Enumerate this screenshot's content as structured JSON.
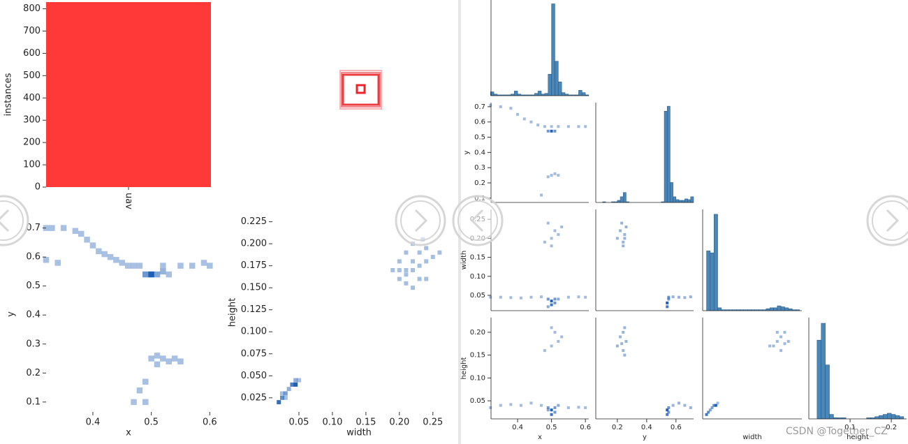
{
  "chart_data": [
    {
      "type": "bar",
      "categories": [
        "uav"
      ],
      "values": [
        830
      ],
      "ylabel": "instances",
      "color": "#ff3838",
      "ylim": [
        0,
        830
      ],
      "yticks": [
        0,
        100,
        200,
        300,
        400,
        500,
        600,
        700,
        800
      ]
    },
    {
      "type": "heatmap",
      "xlabel": "x",
      "ylabel": "y",
      "color": "#1f5fb4",
      "x": [
        0.32,
        0.33,
        0.35,
        0.37,
        0.38,
        0.39,
        0.4,
        0.41,
        0.42,
        0.43,
        0.44,
        0.45,
        0.46,
        0.47,
        0.48,
        0.52,
        0.55,
        0.57,
        0.59,
        0.6,
        0.32,
        0.34,
        0.49,
        0.5,
        0.51,
        0.52,
        0.53,
        0.5,
        0.51,
        0.52,
        0.53,
        0.54,
        0.51,
        0.55,
        0.49,
        0.48,
        0.47,
        0.49
      ],
      "y": [
        0.7,
        0.7,
        0.7,
        0.69,
        0.68,
        0.66,
        0.64,
        0.62,
        0.61,
        0.6,
        0.59,
        0.58,
        0.57,
        0.57,
        0.57,
        0.57,
        0.57,
        0.57,
        0.58,
        0.57,
        0.59,
        0.58,
        0.54,
        0.54,
        0.54,
        0.55,
        0.54,
        0.25,
        0.26,
        0.25,
        0.24,
        0.25,
        0.23,
        0.24,
        0.17,
        0.14,
        0.1,
        0.1
      ],
      "values": [
        1,
        1,
        1,
        1,
        1,
        1,
        1,
        1,
        1,
        1,
        1,
        1,
        1,
        1,
        1,
        1,
        1,
        1,
        1,
        1,
        1,
        1,
        4,
        8,
        3,
        2,
        1,
        1,
        1,
        1,
        1,
        1,
        1,
        1,
        1,
        1,
        1,
        1
      ],
      "xlim": [
        0.32,
        0.602
      ],
      "xticks": [
        0.4,
        0.5,
        0.6
      ],
      "ylim": [
        0.066,
        0.74
      ],
      "yticks": [
        0.1,
        0.2,
        0.3,
        0.4,
        0.5,
        0.6,
        0.7
      ]
    },
    {
      "type": "heatmap",
      "xlabel": "width",
      "ylabel": "height",
      "color": "#1f5fb4",
      "x": [
        0.02,
        0.025,
        0.03,
        0.035,
        0.04,
        0.045,
        0.045,
        0.05,
        0.025,
        0.03,
        0.2,
        0.21,
        0.22,
        0.23,
        0.21,
        0.22,
        0.24,
        0.2,
        0.23,
        0.22,
        0.21,
        0.24,
        0.25,
        0.22,
        0.23,
        0.235,
        0.21,
        0.19,
        0.26,
        0.2,
        0.24
      ],
      "y": [
        0.02,
        0.025,
        0.03,
        0.035,
        0.04,
        0.04,
        0.045,
        0.045,
        0.03,
        0.025,
        0.16,
        0.17,
        0.18,
        0.19,
        0.19,
        0.2,
        0.18,
        0.18,
        0.16,
        0.15,
        0.155,
        0.195,
        0.185,
        0.17,
        0.175,
        0.205,
        0.165,
        0.17,
        0.19,
        0.17,
        0.16
      ],
      "values": [
        6,
        4,
        3,
        2,
        5,
        7,
        2,
        1,
        1,
        1,
        1,
        1,
        1,
        1,
        1,
        1,
        1,
        1,
        1,
        1,
        1,
        1,
        1,
        1,
        1,
        1,
        1,
        1,
        1,
        1,
        1
      ],
      "xlim": [
        0.0104,
        0.269
      ],
      "xticks": [
        0.05,
        {
          "value": 0.1,
          "label": "0.10"
        },
        0.15,
        {
          "value": 0.2,
          "label": "0.20"
        },
        0.25
      ],
      "ylim": [
        0.009,
        0.235
      ],
      "yticks": [
        0.025,
        {
          "value": 0.05,
          "label": "0.050"
        },
        0.075,
        {
          "value": 0.1,
          "label": "0.100"
        },
        0.125,
        {
          "value": 0.15,
          "label": "0.150"
        },
        0.175,
        {
          "value": 0.2,
          "label": "0.200"
        },
        0.225
      ]
    },
    {
      "type": "histogram",
      "color": "#4a86b8",
      "bins": [
        0.32,
        0.33,
        0.34,
        0.35,
        0.36,
        0.37,
        0.38,
        0.39,
        0.4,
        0.41,
        0.42,
        0.43,
        0.44,
        0.45,
        0.46,
        0.47,
        0.48,
        0.49,
        0.5,
        0.51,
        0.52,
        0.53,
        0.54,
        0.55,
        0.56,
        0.57,
        0.58,
        0.59,
        0.6,
        0.61
      ],
      "values": [
        5,
        2,
        1,
        1,
        1,
        1,
        2,
        6,
        2,
        1,
        1,
        1,
        1,
        3,
        6,
        2,
        3,
        28,
        120,
        45,
        18,
        4,
        2,
        1,
        1,
        1,
        7,
        4,
        1
      ],
      "xlim": [
        0.3216,
        0.61
      ],
      "ylim": [
        0,
        125
      ]
    },
    {
      "type": "heatmap",
      "ylabel": "y",
      "color": "#1f5fb4",
      "x": [
        0.32,
        0.35,
        0.38,
        0.4,
        0.42,
        0.44,
        0.46,
        0.48,
        0.5,
        0.52,
        0.55,
        0.58,
        0.6,
        0.49,
        0.5,
        0.51,
        0.5,
        0.51,
        0.52,
        0.49,
        0.47
      ],
      "y": [
        0.71,
        0.7,
        0.69,
        0.65,
        0.62,
        0.6,
        0.58,
        0.57,
        0.57,
        0.57,
        0.57,
        0.57,
        0.57,
        0.54,
        0.54,
        0.54,
        0.25,
        0.26,
        0.25,
        0.24,
        0.12
      ],
      "values": [
        1,
        1,
        1,
        1,
        1,
        1,
        1,
        1,
        1,
        1,
        1,
        1,
        1,
        3,
        6,
        3,
        1,
        1,
        1,
        1,
        1
      ],
      "xlim": [
        0.3216,
        0.61
      ],
      "ylim": [
        0.0716,
        0.727
      ],
      "yticks": [
        0.1,
        0.2,
        0.3,
        0.4,
        0.5,
        0.6,
        0.7
      ]
    },
    {
      "type": "histogram",
      "color": "#4a86b8",
      "bins": [
        0.06,
        0.08,
        0.1,
        0.12,
        0.14,
        0.16,
        0.18,
        0.2,
        0.22,
        0.24,
        0.26,
        0.28,
        0.3,
        0.32,
        0.34,
        0.36,
        0.38,
        0.4,
        0.42,
        0.44,
        0.46,
        0.48,
        0.5,
        0.52,
        0.54,
        0.56,
        0.58,
        0.6,
        0.62,
        0.64,
        0.66,
        0.68,
        0.7,
        0.72
      ],
      "values": [
        0,
        0,
        1,
        0,
        0,
        1,
        1,
        3,
        8,
        14,
        1,
        0,
        0,
        0,
        0,
        0,
        0,
        0,
        0,
        0,
        0,
        0,
        1,
        128,
        135,
        28,
        8,
        4,
        3,
        3,
        5,
        4,
        8
      ],
      "xlim": [
        0.053,
        0.72
      ],
      "ylim": [
        0,
        140
      ]
    },
    {
      "type": "heatmap",
      "ylabel": "width",
      "color": "#1f5fb4",
      "x": [
        0.32,
        0.35,
        0.38,
        0.41,
        0.44,
        0.47,
        0.49,
        0.5,
        0.51,
        0.52,
        0.55,
        0.58,
        0.6,
        0.5,
        0.51,
        0.49,
        0.48,
        0.5,
        0.52,
        0.51,
        0.53,
        0.5,
        0.49
      ],
      "y": [
        0.045,
        0.045,
        0.044,
        0.043,
        0.045,
        0.046,
        0.04,
        0.035,
        0.04,
        0.04,
        0.045,
        0.046,
        0.045,
        0.025,
        0.03,
        0.02,
        0.19,
        0.2,
        0.21,
        0.22,
        0.23,
        0.18,
        0.24
      ],
      "values": [
        1,
        1,
        1,
        1,
        1,
        1,
        3,
        6,
        3,
        2,
        1,
        1,
        1,
        5,
        3,
        2,
        1,
        1,
        1,
        1,
        1,
        1,
        1
      ],
      "xlim": [
        0.3216,
        0.61
      ],
      "ylim": [
        0.0096,
        0.276
      ],
      "yticks": [
        0.05,
        {
          "value": 0.1,
          "label": "0.10"
        },
        0.15,
        {
          "value": 0.2,
          "label": "0.20"
        },
        0.25
      ]
    },
    {
      "type": "heatmap",
      "color": "#1f5fb4",
      "x": [
        0.2,
        0.22,
        0.24,
        0.25,
        0.26,
        0.24,
        0.23,
        0.25,
        0.55,
        0.58,
        0.62,
        0.66,
        0.7,
        0.54,
        0.54,
        0.55
      ],
      "y": [
        0.2,
        0.22,
        0.19,
        0.21,
        0.23,
        0.18,
        0.24,
        0.2,
        0.045,
        0.046,
        0.045,
        0.044,
        0.046,
        0.03,
        0.02,
        0.04
      ],
      "values": [
        1,
        1,
        1,
        1,
        1,
        1,
        1,
        1,
        2,
        1,
        1,
        1,
        1,
        4,
        3,
        2
      ],
      "xlim": [
        0.053,
        0.72
      ],
      "ylim": [
        0.0096,
        0.276
      ]
    },
    {
      "type": "histogram",
      "color": "#4a86b8",
      "bins": [
        0.01,
        0.02,
        0.03,
        0.04,
        0.05,
        0.06,
        0.07,
        0.08,
        0.09,
        0.1,
        0.11,
        0.12,
        0.13,
        0.14,
        0.15,
        0.16,
        0.17,
        0.18,
        0.19,
        0.2,
        0.21,
        0.22,
        0.23,
        0.24,
        0.25,
        0.26,
        0.27
      ],
      "values": [
        0,
        62,
        60,
        100,
        3,
        1,
        1,
        1,
        1,
        1,
        1,
        1,
        1,
        1,
        1,
        1,
        1,
        2,
        3,
        3,
        5,
        4,
        3,
        2,
        1,
        1
      ],
      "xlim": [
        0.0096,
        0.276
      ],
      "ylim": [
        0,
        105
      ]
    },
    {
      "type": "heatmap",
      "xlabel": "x",
      "ylabel": "height",
      "color": "#1f5fb4",
      "x": [
        0.32,
        0.35,
        0.38,
        0.41,
        0.44,
        0.47,
        0.49,
        0.5,
        0.51,
        0.52,
        0.55,
        0.58,
        0.6,
        0.5,
        0.51,
        0.49,
        0.48,
        0.5,
        0.52,
        0.51,
        0.53,
        0.5
      ],
      "y": [
        0.035,
        0.04,
        0.042,
        0.04,
        0.045,
        0.04,
        0.035,
        0.03,
        0.035,
        0.04,
        0.035,
        0.036,
        0.035,
        0.02,
        0.025,
        0.03,
        0.16,
        0.17,
        0.18,
        0.2,
        0.19,
        0.21
      ],
      "values": [
        1,
        1,
        1,
        1,
        1,
        1,
        3,
        6,
        3,
        2,
        1,
        1,
        1,
        5,
        3,
        2,
        1,
        1,
        1,
        1,
        1,
        1
      ],
      "xlim": [
        0.3216,
        0.61
      ],
      "xticks": [
        0.4,
        0.5,
        0.6
      ],
      "ylim": [
        0.0105,
        0.232
      ],
      "yticks": [
        0.05,
        {
          "value": 0.1,
          "label": "0.10"
        },
        0.15,
        {
          "value": 0.2,
          "label": "0.20"
        }
      ]
    },
    {
      "type": "heatmap",
      "xlabel": "y",
      "color": "#1f5fb4",
      "x": [
        0.2,
        0.22,
        0.24,
        0.25,
        0.26,
        0.24,
        0.23,
        0.25,
        0.55,
        0.58,
        0.62,
        0.66,
        0.7,
        0.54,
        0.54,
        0.55
      ],
      "y": [
        0.17,
        0.19,
        0.16,
        0.21,
        0.18,
        0.2,
        0.175,
        0.15,
        0.035,
        0.04,
        0.045,
        0.04,
        0.035,
        0.03,
        0.02,
        0.025
      ],
      "values": [
        1,
        1,
        1,
        1,
        1,
        1,
        1,
        1,
        2,
        1,
        1,
        1,
        1,
        4,
        3,
        2
      ],
      "xlim": [
        0.053,
        0.72
      ],
      "xticks": [
        0.2,
        0.4,
        0.6
      ],
      "ylim": [
        0.0105,
        0.232
      ]
    },
    {
      "type": "heatmap",
      "xlabel": "width",
      "color": "#1f5fb4",
      "x": [
        0.02,
        0.025,
        0.03,
        0.035,
        0.04,
        0.045,
        0.05,
        0.2,
        0.21,
        0.22,
        0.23,
        0.24,
        0.19,
        0.22,
        0.21,
        0.23
      ],
      "y": [
        0.02,
        0.025,
        0.03,
        0.035,
        0.04,
        0.04,
        0.045,
        0.17,
        0.18,
        0.19,
        0.2,
        0.18,
        0.17,
        0.16,
        0.2,
        0.175
      ],
      "values": [
        4,
        3,
        2,
        2,
        3,
        5,
        1,
        1,
        1,
        1,
        1,
        1,
        1,
        1,
        1,
        1
      ],
      "xlim": [
        0.0096,
        0.276
      ],
      "ylim": [
        0.0105,
        0.232
      ]
    },
    {
      "type": "histogram",
      "xlabel": "height",
      "color": "#4a86b8",
      "bins": [
        0.01,
        0.02,
        0.03,
        0.04,
        0.05,
        0.06,
        0.07,
        0.08,
        0.09,
        0.1,
        0.11,
        0.12,
        0.13,
        0.14,
        0.15,
        0.16,
        0.17,
        0.18,
        0.19,
        0.2,
        0.21,
        0.22,
        0.23
      ],
      "values": [
        0,
        70,
        85,
        48,
        4,
        1,
        1,
        1,
        0,
        0,
        0,
        0,
        0,
        1,
        1,
        2,
        3,
        4,
        5,
        4,
        3,
        2
      ],
      "xlim": [
        0,
        0.237
      ],
      "ylim": [
        0,
        90
      ],
      "xticks": [
        0.1,
        0.2
      ]
    }
  ],
  "watermark": "CSDN @Together_CZ"
}
